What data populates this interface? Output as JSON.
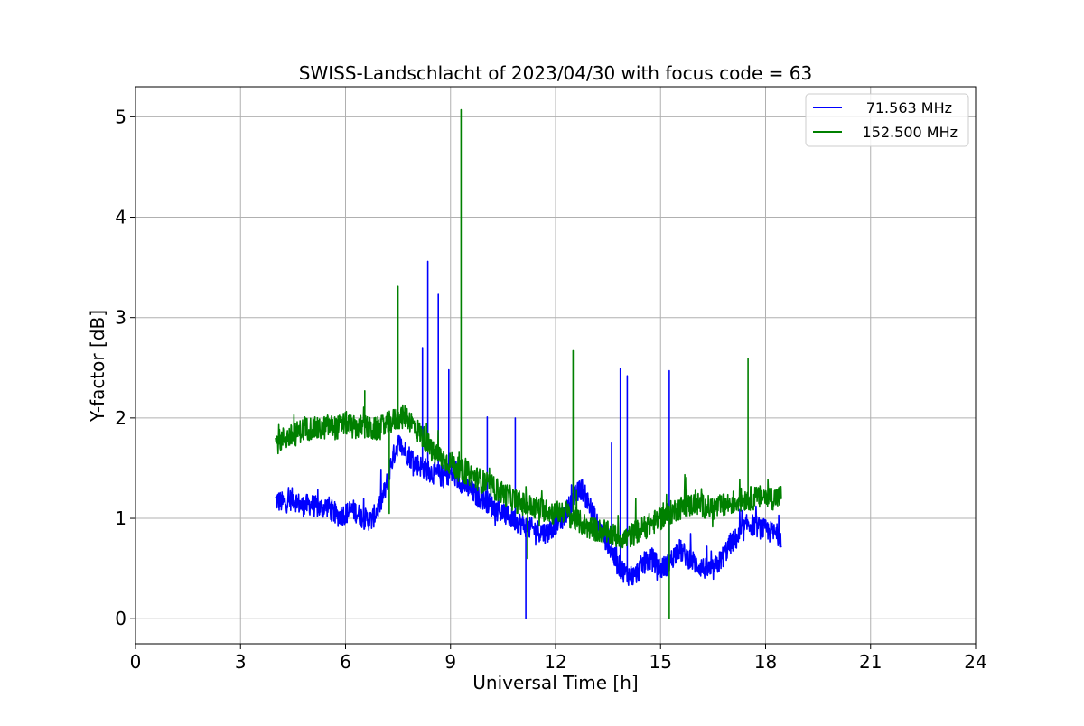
{
  "chart_data": {
    "type": "line",
    "title": "SWISS-Landschlacht of 2023/04/30 with focus code = 63",
    "xlabel": "Universal Time [h]",
    "ylabel": "Y-factor [dB]",
    "xlim": [
      0,
      24
    ],
    "ylim": [
      -0.25,
      5.3
    ],
    "xticks": [
      0,
      3,
      6,
      9,
      12,
      15,
      18,
      21,
      24
    ],
    "yticks": [
      0,
      1,
      2,
      3,
      4,
      5
    ],
    "grid": true,
    "legend_position": "upper right",
    "series": [
      {
        "name": "71.563 MHz",
        "color": "#0000ff",
        "x": [
          4.0,
          4.25,
          4.5,
          4.75,
          5.0,
          5.25,
          5.5,
          5.75,
          6.0,
          6.25,
          6.5,
          6.75,
          7.0,
          7.15,
          7.3,
          7.5,
          7.75,
          8.0,
          8.25,
          8.5,
          8.75,
          9.0,
          9.25,
          9.5,
          9.75,
          10.0,
          10.25,
          10.5,
          10.75,
          11.0,
          11.25,
          11.5,
          11.75,
          12.0,
          12.25,
          12.5,
          12.75,
          13.0,
          13.25,
          13.5,
          13.75,
          14.0,
          14.25,
          14.5,
          14.75,
          15.0,
          15.25,
          15.5,
          15.75,
          16.0,
          16.25,
          16.5,
          16.75,
          17.0,
          17.25,
          17.5,
          17.75,
          18.0,
          18.25,
          18.45
        ],
        "y": [
          1.18,
          1.15,
          1.2,
          1.12,
          1.14,
          1.1,
          1.12,
          1.02,
          1.05,
          1.08,
          1.0,
          0.98,
          1.15,
          1.3,
          1.55,
          1.75,
          1.65,
          1.55,
          1.5,
          1.45,
          1.42,
          1.45,
          1.38,
          1.3,
          1.22,
          1.18,
          1.1,
          1.05,
          1.0,
          0.95,
          0.9,
          0.88,
          0.85,
          0.95,
          1.02,
          1.2,
          1.3,
          1.1,
          0.9,
          0.75,
          0.55,
          0.45,
          0.42,
          0.55,
          0.6,
          0.5,
          0.55,
          0.7,
          0.62,
          0.55,
          0.5,
          0.48,
          0.6,
          0.75,
          0.82,
          0.95,
          0.92,
          0.88,
          0.85,
          0.82
        ],
        "spikes": [
          {
            "x": 8.35,
            "y": 3.56
          },
          {
            "x": 8.65,
            "y": 3.23
          },
          {
            "x": 8.2,
            "y": 2.7
          },
          {
            "x": 8.95,
            "y": 2.48
          },
          {
            "x": 13.85,
            "y": 2.49
          },
          {
            "x": 14.05,
            "y": 2.42
          },
          {
            "x": 15.25,
            "y": 2.47
          },
          {
            "x": 10.05,
            "y": 2.01
          },
          {
            "x": 10.85,
            "y": 2.0
          },
          {
            "x": 13.6,
            "y": 1.75
          },
          {
            "x": 11.15,
            "y": 0.0
          }
        ]
      },
      {
        "name": "152.500 MHz",
        "color": "#008000",
        "x": [
          4.0,
          4.25,
          4.5,
          4.75,
          5.0,
          5.25,
          5.5,
          5.75,
          6.0,
          6.25,
          6.5,
          6.75,
          7.0,
          7.25,
          7.5,
          7.75,
          8.0,
          8.25,
          8.5,
          8.75,
          9.0,
          9.25,
          9.5,
          9.75,
          10.0,
          10.25,
          10.5,
          10.75,
          11.0,
          11.25,
          11.5,
          11.75,
          12.0,
          12.25,
          12.5,
          12.75,
          13.0,
          13.25,
          13.5,
          13.75,
          14.0,
          14.25,
          14.5,
          14.75,
          15.0,
          15.25,
          15.5,
          15.75,
          16.0,
          16.25,
          16.5,
          16.75,
          17.0,
          17.25,
          17.5,
          17.75,
          18.0,
          18.25,
          18.45
        ],
        "y": [
          1.75,
          1.8,
          1.82,
          1.88,
          1.9,
          1.88,
          1.92,
          1.9,
          1.95,
          1.9,
          1.92,
          1.88,
          1.9,
          1.95,
          2.0,
          2.02,
          1.9,
          1.8,
          1.65,
          1.6,
          1.55,
          1.48,
          1.45,
          1.4,
          1.35,
          1.3,
          1.25,
          1.2,
          1.15,
          1.12,
          1.1,
          1.08,
          1.05,
          1.08,
          1.0,
          0.95,
          0.9,
          0.88,
          0.85,
          0.82,
          0.8,
          0.85,
          0.9,
          0.95,
          1.0,
          1.05,
          1.1,
          1.12,
          1.15,
          1.12,
          1.1,
          1.12,
          1.15,
          1.18,
          1.2,
          1.2,
          1.22,
          1.2,
          1.22
        ],
        "spikes": [
          {
            "x": 9.3,
            "y": 5.07
          },
          {
            "x": 7.5,
            "y": 3.31
          },
          {
            "x": 12.5,
            "y": 2.67
          },
          {
            "x": 17.5,
            "y": 2.59
          },
          {
            "x": 6.55,
            "y": 2.27
          },
          {
            "x": 15.25,
            "y": 0.0
          },
          {
            "x": 11.2,
            "y": 0.6
          },
          {
            "x": 7.25,
            "y": 1.05
          }
        ]
      }
    ]
  }
}
